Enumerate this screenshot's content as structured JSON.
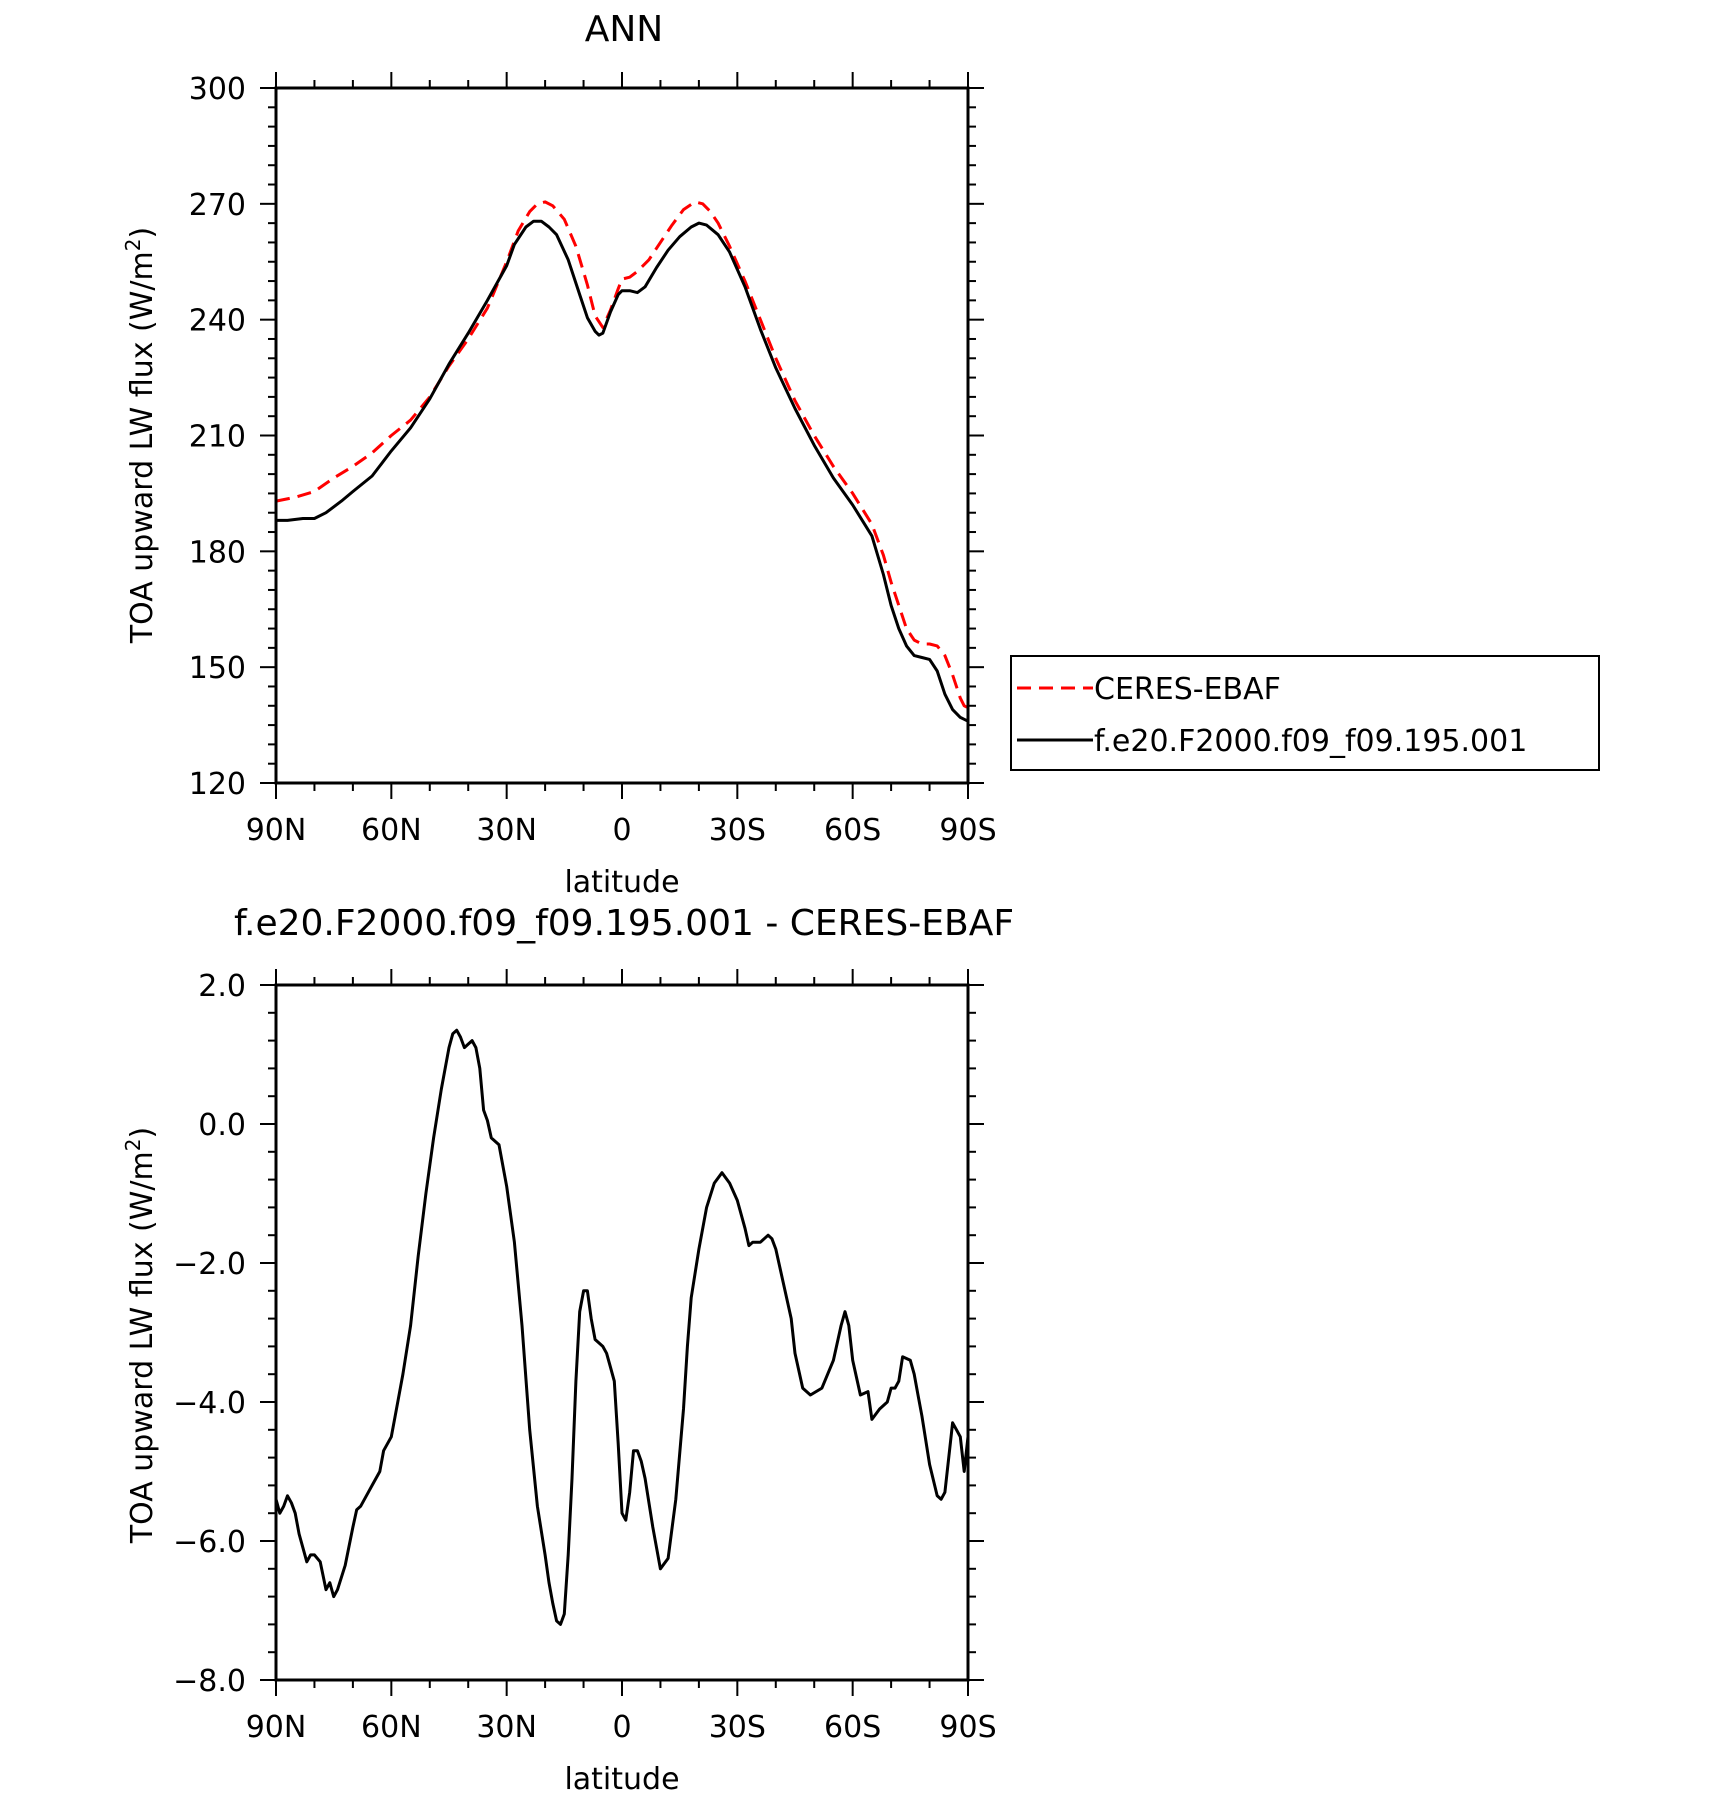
{
  "chart_data": [
    {
      "type": "line",
      "title": "ANN",
      "xlabel": "latitude",
      "ylabel": "TOA upward LW flux (W/m²)",
      "ylabel_main": "TOA upward LW flux (W/m",
      "ylabel_sup": "2",
      "ylabel_tail": ")",
      "x_range": [
        90,
        -90
      ],
      "ylim": [
        120,
        300
      ],
      "x_ticks": [
        90,
        60,
        30,
        0,
        -30,
        -60,
        -90
      ],
      "x_tick_labels": [
        "90N",
        "60N",
        "30N",
        "0",
        "30S",
        "60S",
        "90S"
      ],
      "y_ticks": [
        120,
        150,
        180,
        210,
        240,
        270,
        300
      ],
      "y_tick_labels": [
        "120",
        "150",
        "180",
        "210",
        "240",
        "270",
        "300"
      ],
      "legend_position": "right",
      "grid": false,
      "series": [
        {
          "name": "CERES-EBAF",
          "color": "#ff0000",
          "dash": "dashed",
          "x": [
            90,
            85,
            80,
            75,
            70,
            65,
            60,
            55,
            50,
            45,
            40,
            35,
            30,
            27,
            24,
            22,
            20,
            18,
            15,
            12,
            9,
            7,
            5,
            3,
            1,
            0,
            -2,
            -4,
            -7,
            -10,
            -13,
            -16,
            -19,
            -21,
            -23,
            -25,
            -28,
            -32,
            -36,
            -40,
            -45,
            -50,
            -55,
            -60,
            -65,
            -68,
            -70,
            -72,
            -74,
            -76,
            -78,
            -80,
            -82,
            -84,
            -86,
            -88,
            -89,
            -90
          ],
          "y": [
            193,
            194,
            195.5,
            199,
            202,
            205.5,
            210,
            214,
            220,
            228,
            235,
            243,
            255,
            263,
            268,
            270,
            270.5,
            269.5,
            266,
            259,
            249,
            241,
            238,
            242.5,
            248,
            250.5,
            251,
            252.5,
            255.5,
            260,
            264.5,
            268.5,
            270.5,
            270,
            268,
            265,
            259,
            250,
            240,
            230,
            219,
            210,
            202,
            195,
            187,
            179,
            172,
            166,
            160,
            157,
            156,
            156,
            155.5,
            153,
            148,
            142,
            140,
            139.5
          ]
        },
        {
          "name": "f.e20.F2000.f09_f09.195.001",
          "color": "#000000",
          "dash": "solid",
          "x": [
            90,
            87,
            83,
            80,
            77,
            73,
            70,
            65,
            60,
            55,
            50,
            45,
            40,
            35,
            30,
            28,
            25,
            23,
            21,
            19,
            17,
            14,
            11,
            9,
            7,
            6,
            5,
            3,
            1,
            0,
            -2,
            -4,
            -6,
            -9,
            -12,
            -15,
            -18,
            -20,
            -22,
            -25,
            -28,
            -32,
            -36,
            -40,
            -45,
            -50,
            -55,
            -60,
            -65,
            -68,
            -70,
            -72,
            -74,
            -76,
            -78,
            -80,
            -82,
            -84,
            -86,
            -88,
            -89,
            -90
          ],
          "y": [
            188,
            188,
            188.5,
            188.5,
            190,
            193,
            195.5,
            199.5,
            206,
            212,
            219.5,
            228.5,
            236.5,
            245,
            254,
            259.5,
            264,
            265.5,
            265.5,
            264,
            262,
            255.5,
            246.5,
            240.5,
            237,
            236,
            236.5,
            242,
            246.5,
            247.5,
            247.5,
            247,
            248.5,
            253.5,
            258,
            261.5,
            264,
            265,
            264.5,
            262,
            257.5,
            248.5,
            237.5,
            227.5,
            217,
            207.5,
            199,
            192,
            184,
            174,
            166,
            160,
            155.5,
            153,
            152.5,
            152,
            149,
            143,
            139,
            137,
            136.5,
            136
          ]
        }
      ]
    },
    {
      "type": "line",
      "title": "f.e20.F2000.f09_f09.195.001 - CERES-EBAF",
      "xlabel": "latitude",
      "ylabel": "TOA upward LW flux (W/m²)",
      "ylabel_main": "TOA upward LW flux (W/m",
      "ylabel_sup": "2",
      "ylabel_tail": ")",
      "x_range": [
        90,
        -90
      ],
      "ylim": [
        -8.0,
        2.0
      ],
      "x_ticks": [
        90,
        60,
        30,
        0,
        -30,
        -60,
        -90
      ],
      "x_tick_labels": [
        "90N",
        "60N",
        "30N",
        "0",
        "30S",
        "60S",
        "90S"
      ],
      "y_ticks": [
        -8.0,
        -6.0,
        -4.0,
        -2.0,
        0.0,
        2.0
      ],
      "y_tick_labels": [
        "−8.0",
        "−6.0",
        "−4.0",
        "−2.0",
        "0.0",
        "2.0"
      ],
      "grid": false,
      "series": [
        {
          "color": "#000000",
          "dash": "solid",
          "x": [
            90,
            89,
            88,
            87,
            86,
            85,
            84,
            82,
            81,
            80,
            78.5,
            77,
            76,
            75,
            74,
            72,
            70,
            69,
            68,
            66,
            65,
            63,
            62,
            60,
            59,
            57,
            55,
            53,
            51,
            49,
            47,
            45,
            44,
            43,
            42,
            41,
            40,
            39,
            38,
            37,
            36,
            35,
            34,
            32,
            30,
            28,
            26,
            24,
            22,
            20,
            19,
            18,
            17,
            16,
            15,
            14,
            13,
            12,
            11,
            10,
            9,
            8,
            7,
            6,
            5,
            4,
            3,
            2,
            1,
            0,
            -1,
            -2,
            -3,
            -4,
            -5,
            -6,
            -8,
            -9,
            -10,
            -12,
            -14,
            -16,
            -17,
            -18,
            -20,
            -22,
            -24,
            -26,
            -28,
            -30,
            -32,
            -33,
            -34,
            -36,
            -38,
            -39,
            -40,
            -42,
            -44,
            -45,
            -47,
            -49,
            -52,
            -55,
            -57,
            -58,
            -59,
            -60,
            -62,
            -64,
            -65,
            -67,
            -69,
            -70,
            -71,
            -72,
            -73,
            -75,
            -76,
            -77,
            -78,
            -80,
            -82,
            -83,
            -84,
            -86,
            -87,
            -88,
            -89,
            -90
          ],
          "y": [
            -5.4,
            -5.6,
            -5.5,
            -5.35,
            -5.45,
            -5.6,
            -5.9,
            -6.3,
            -6.2,
            -6.2,
            -6.3,
            -6.7,
            -6.6,
            -6.8,
            -6.7,
            -6.35,
            -5.8,
            -5.55,
            -5.5,
            -5.3,
            -5.2,
            -5.0,
            -4.7,
            -4.5,
            -4.2,
            -3.6,
            -2.9,
            -1.9,
            -1.0,
            -0.2,
            0.5,
            1.1,
            1.3,
            1.35,
            1.25,
            1.1,
            1.15,
            1.2,
            1.1,
            0.8,
            0.2,
            0.05,
            -0.2,
            -0.3,
            -0.9,
            -1.7,
            -2.9,
            -4.4,
            -5.5,
            -6.2,
            -6.6,
            -6.9,
            -7.15,
            -7.2,
            -7.05,
            -6.2,
            -5.1,
            -3.7,
            -2.7,
            -2.4,
            -2.4,
            -2.8,
            -3.1,
            -3.15,
            -3.2,
            -3.3,
            -3.5,
            -3.7,
            -4.6,
            -5.6,
            -5.7,
            -5.3,
            -4.7,
            -4.7,
            -4.85,
            -5.1,
            -5.8,
            -6.1,
            -6.4,
            -6.25,
            -5.4,
            -4.1,
            -3.2,
            -2.5,
            -1.8,
            -1.2,
            -0.85,
            -0.7,
            -0.85,
            -1.1,
            -1.5,
            -1.75,
            -1.7,
            -1.7,
            -1.6,
            -1.65,
            -1.8,
            -2.3,
            -2.8,
            -3.3,
            -3.8,
            -3.9,
            -3.8,
            -3.4,
            -2.9,
            -2.7,
            -2.9,
            -3.4,
            -3.9,
            -3.85,
            -4.25,
            -4.1,
            -4.0,
            -3.8,
            -3.8,
            -3.7,
            -3.35,
            -3.4,
            -3.6,
            -3.9,
            -4.2,
            -4.9,
            -5.35,
            -5.4,
            -5.3,
            -4.3,
            -4.4,
            -4.5,
            -5.0,
            -4.5
          ]
        }
      ]
    }
  ]
}
